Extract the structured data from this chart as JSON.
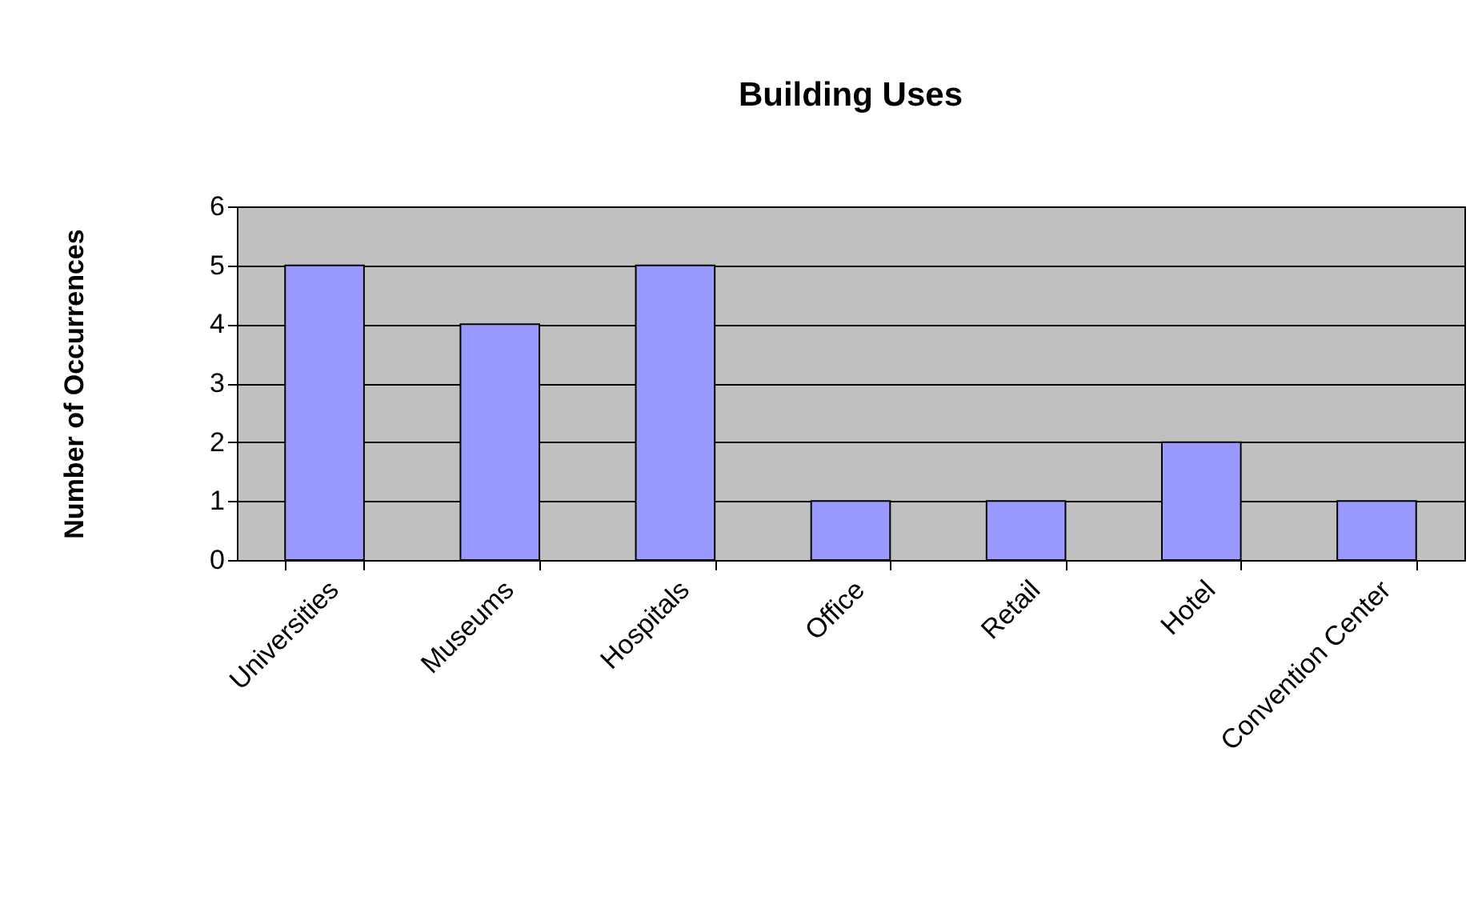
{
  "chart_data": {
    "type": "bar",
    "title": "Building Uses",
    "ylabel": "Number of Occurrences",
    "categories": [
      "Universities",
      "Museums",
      "Hospitals",
      "Office",
      "Retail",
      "Hotel",
      "Convention Center"
    ],
    "values": [
      5,
      4,
      5,
      1,
      1,
      2,
      1
    ],
    "color": "#9999ff",
    "ylim": [
      0,
      6
    ],
    "yticks": [
      0,
      1,
      2,
      3,
      4,
      5,
      6
    ],
    "grid": "y"
  }
}
